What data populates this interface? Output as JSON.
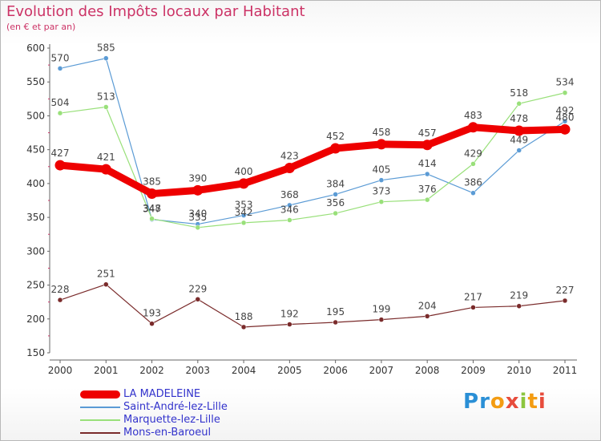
{
  "header": {
    "title": "Evolution des Impôts locaux par Habitant",
    "subtitle": "(en € et par an)"
  },
  "logo": {
    "text": "Proxiti"
  },
  "chart_data": {
    "type": "line",
    "title": "Evolution des Impôts locaux par Habitant",
    "subtitle": "(en € et par an)",
    "xlabel": "",
    "ylabel": "",
    "ylim": [
      150,
      600
    ],
    "yticks": [
      150,
      200,
      250,
      300,
      350,
      400,
      450,
      500,
      550,
      600
    ],
    "grid": false,
    "legend_position": "bottom-left",
    "categories": [
      "2000",
      "2001",
      "2002",
      "2003",
      "2004",
      "2005",
      "2006",
      "2007",
      "2008",
      "2009",
      "2010",
      "2011"
    ],
    "series": [
      {
        "name": "Saint-André-lez-Lille",
        "color": "#5b9bd5",
        "values": [
          570,
          585,
          347,
          340,
          353,
          368,
          384,
          405,
          414,
          386,
          449,
          492
        ]
      },
      {
        "name": "Marquette-lez-Lille",
        "color": "#99e07a",
        "values": [
          504,
          513,
          348,
          335,
          342,
          346,
          356,
          373,
          376,
          429,
          518,
          534
        ]
      },
      {
        "name": "Mons-en-Baroeul",
        "color": "#7a2b2b",
        "values": [
          228,
          251,
          193,
          229,
          188,
          192,
          195,
          199,
          204,
          217,
          219,
          227
        ]
      },
      {
        "name": "LA MADELEINE",
        "color": "#ee0000",
        "values": [
          427,
          421,
          385,
          390,
          400,
          423,
          452,
          458,
          457,
          483,
          478,
          480
        ]
      }
    ],
    "legend_order": [
      "LA MADELEINE",
      "Saint-André-lez-Lille",
      "Marquette-lez-Lille",
      "Mons-en-Baroeul"
    ]
  }
}
